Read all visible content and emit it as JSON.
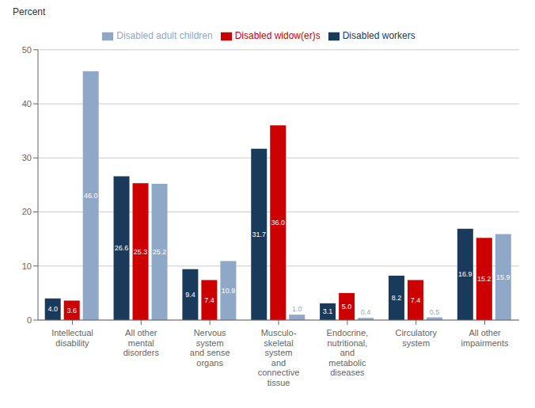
{
  "chart_data": {
    "type": "bar",
    "ylabel": "Percent",
    "categories": [
      "Intellectual\ndisability",
      "All other\nmental\ndisorders",
      "Nervous\nsystem\nand sense\norgans",
      "Musculo-\nskeletal\nsystem\nand\nconnective\ntissue",
      "Endocrine,\nnutritional,\nand\nmetabolic\ndiseases",
      "Circulatory\nsystem",
      "All other\nimpairments"
    ],
    "series": [
      {
        "name": "Disabled workers",
        "color": "#1a3a5c",
        "values": [
          4.0,
          26.6,
          9.4,
          31.7,
          3.1,
          8.2,
          16.9
        ],
        "value_labels": [
          "4.0",
          "26.6",
          "9.4",
          "31.7",
          "3.1",
          "8.2",
          "16.9"
        ]
      },
      {
        "name": "Disabled widow(er)s",
        "color": "#cc0000",
        "values": [
          3.6,
          25.3,
          7.4,
          36.0,
          5.0,
          7.4,
          15.2
        ],
        "value_labels": [
          "3.6",
          "25.3",
          "7.4",
          "36.0",
          "5.0",
          "7.4",
          "15.2"
        ]
      },
      {
        "name": "Disabled adult children",
        "color": "#8fa8c8",
        "values": [
          46.0,
          25.2,
          10.9,
          1.0,
          0.4,
          0.5,
          15.9
        ],
        "value_labels": [
          "46.0",
          "25.2",
          "10.9",
          "1.0",
          "0.4",
          "0.5",
          "15.9"
        ]
      }
    ],
    "ylim": [
      0,
      50
    ],
    "yticks": [
      0,
      10,
      20,
      30,
      40,
      50
    ],
    "grid": true,
    "legend": "top",
    "data_labels": true
  }
}
